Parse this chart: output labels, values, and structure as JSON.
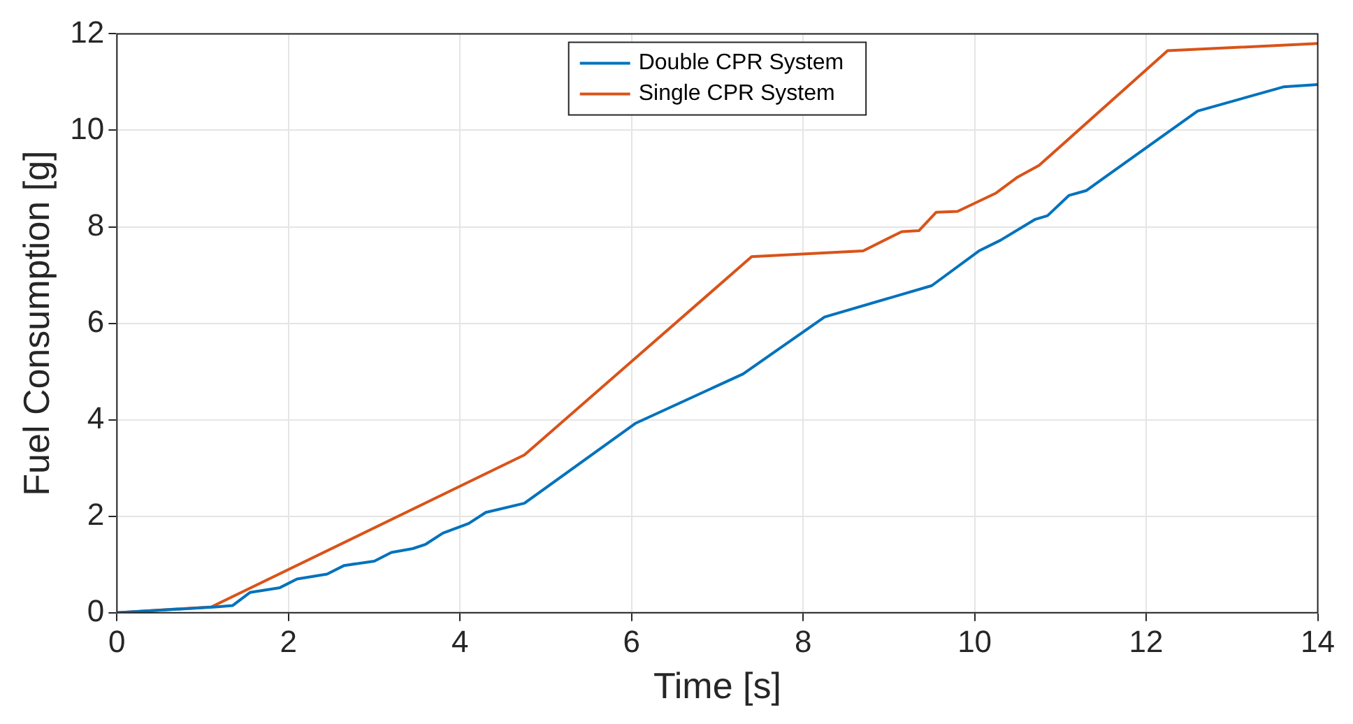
{
  "chart_data": {
    "type": "line",
    "xlabel": "Time [s]",
    "ylabel": "Fuel Consumption [g]",
    "xlim": [
      0,
      14
    ],
    "ylim": [
      0,
      12
    ],
    "xticks": [
      0,
      2,
      4,
      6,
      8,
      10,
      12,
      14
    ],
    "yticks": [
      0,
      2,
      4,
      6,
      8,
      10,
      12
    ],
    "grid": true,
    "legend": "top",
    "marker": "none",
    "line_style": "solid",
    "series": [
      {
        "name": "Double CPR System",
        "color": "#0072bd",
        "x": [
          0,
          1.15,
          1.35,
          1.55,
          1.9,
          2.1,
          2.45,
          2.65,
          3.0,
          3.2,
          3.45,
          3.6,
          3.8,
          4.1,
          4.3,
          4.75,
          6.05,
          7.3,
          8.25,
          9.5,
          10.05,
          10.3,
          10.7,
          10.85,
          11.1,
          11.3,
          12.6,
          13.6,
          14
        ],
        "values": [
          0,
          0.12,
          0.15,
          0.42,
          0.52,
          0.7,
          0.8,
          0.98,
          1.07,
          1.25,
          1.33,
          1.42,
          1.65,
          1.85,
          2.08,
          2.27,
          3.93,
          4.95,
          6.13,
          6.78,
          7.5,
          7.72,
          8.15,
          8.23,
          8.65,
          8.75,
          10.4,
          10.9,
          10.95
        ]
      },
      {
        "name": "Single CPR System",
        "color": "#d95319",
        "x": [
          0,
          1.1,
          4.75,
          7.4,
          8.7,
          9.15,
          9.35,
          9.55,
          9.8,
          10.25,
          10.5,
          10.75,
          12.25,
          14
        ],
        "values": [
          0,
          0.12,
          3.27,
          7.38,
          7.5,
          7.9,
          7.92,
          8.3,
          8.32,
          8.7,
          9.03,
          9.27,
          11.65,
          11.8
        ]
      }
    ]
  }
}
